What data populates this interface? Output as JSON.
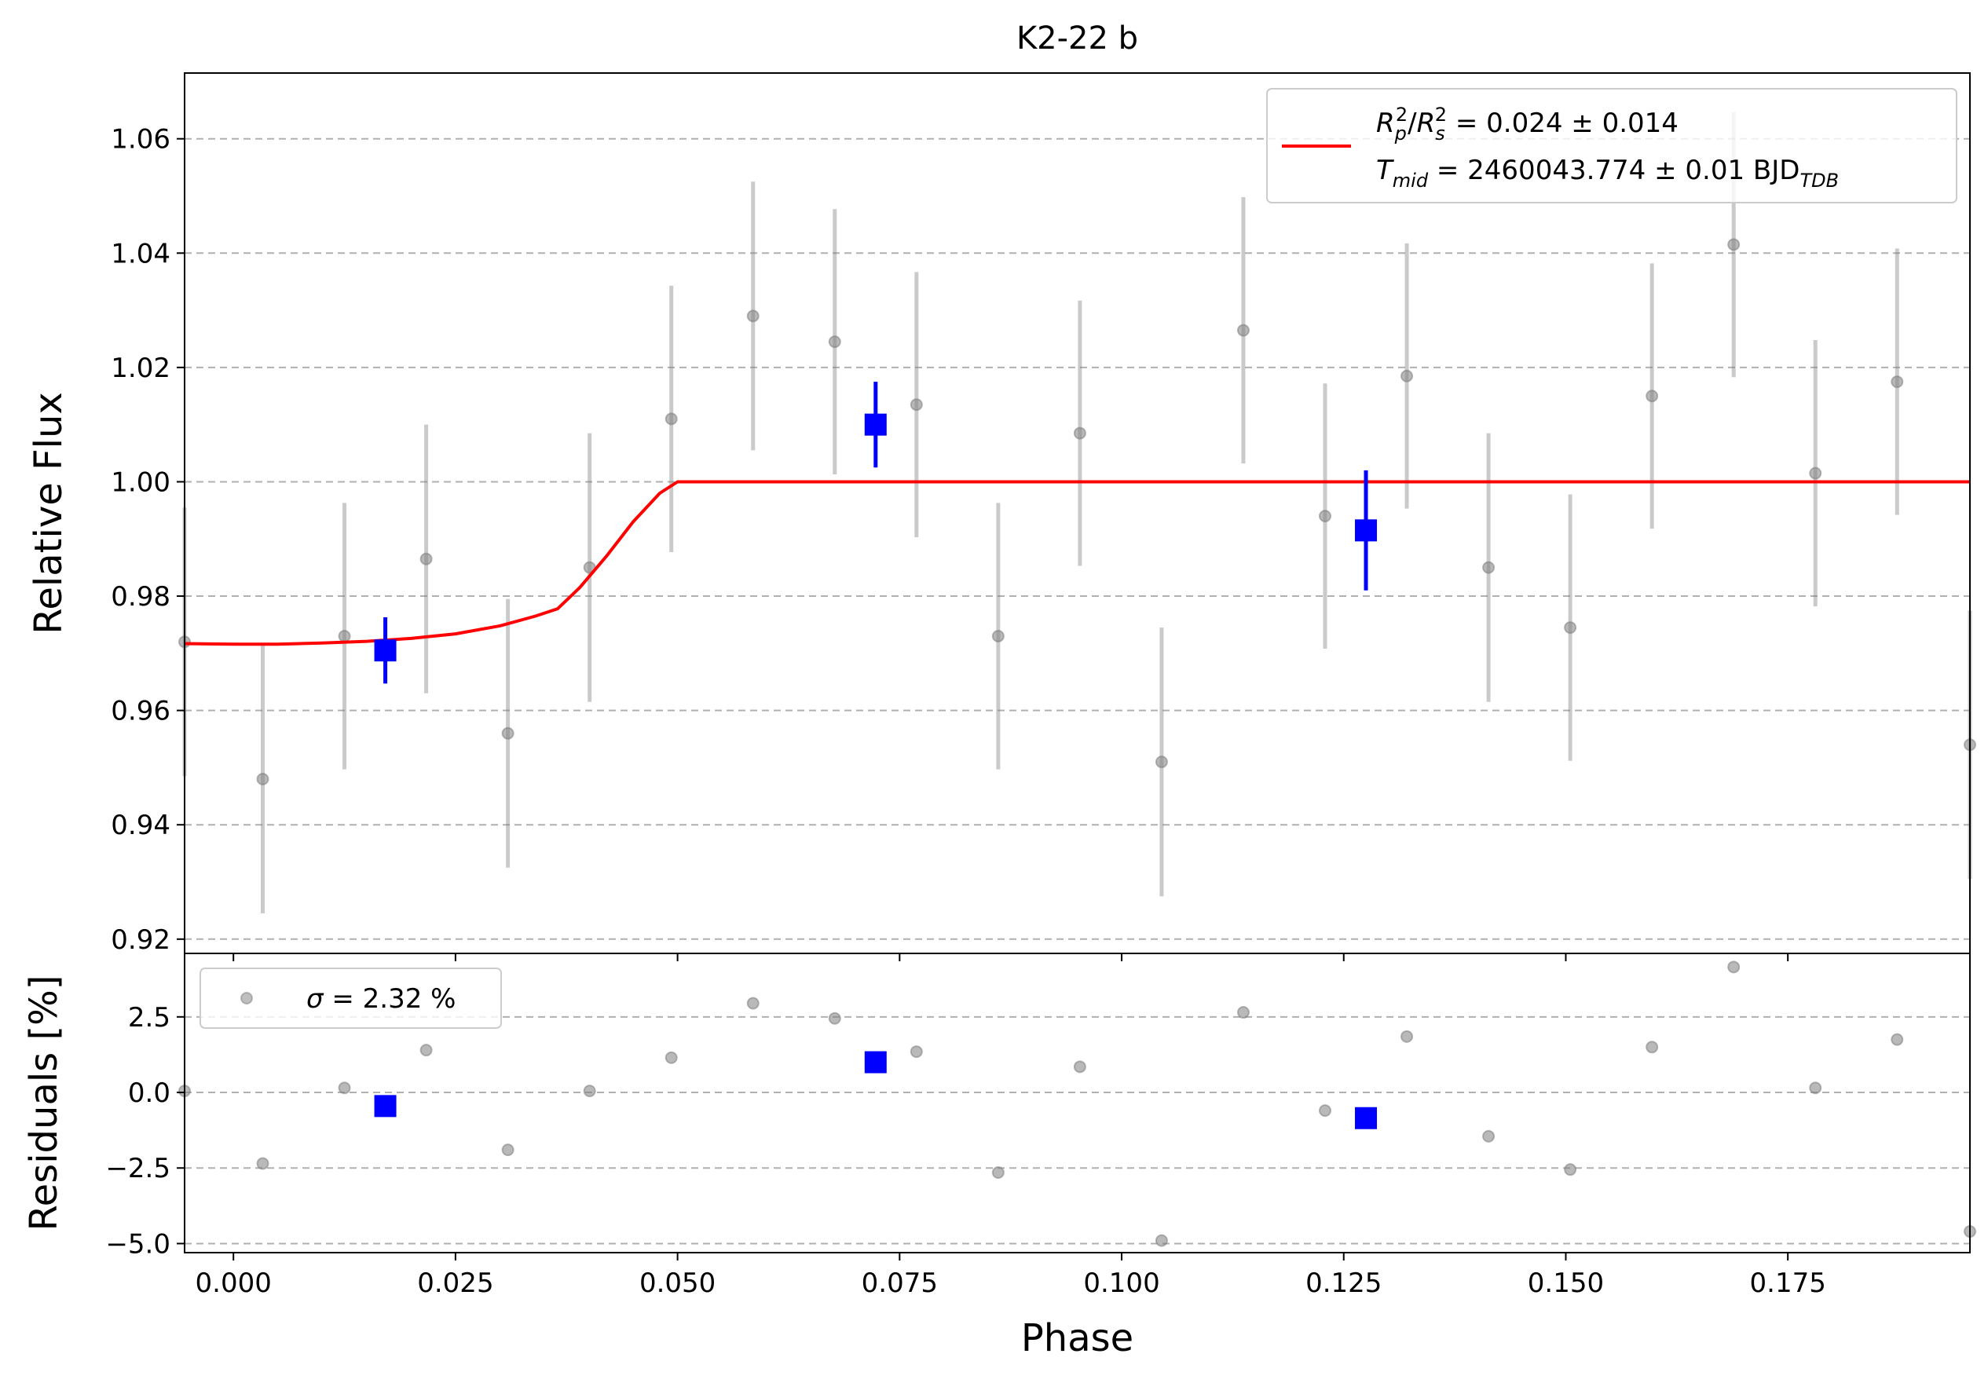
{
  "chart_data": [
    {
      "panel": "main",
      "type": "scatter",
      "title": "K2-22 b",
      "xlabel": "",
      "ylabel": "Relative Flux",
      "xlim": [
        -0.0055,
        0.1955
      ],
      "ylim": [
        0.9175,
        1.0715
      ],
      "yticks": [
        0.92,
        0.94,
        0.96,
        0.98,
        1.0,
        1.02,
        1.04,
        1.06
      ],
      "ytick_labels": [
        "0.92",
        "0.94",
        "0.96",
        "0.98",
        "1.00",
        "1.02",
        "1.04",
        "1.06"
      ],
      "grid": "horizontal dashed",
      "legend": {
        "placement": "top-right",
        "line1_sym": "R",
        "line1_sub1": "p",
        "line1_sup1": "2",
        "line1_slash": "/",
        "line1_sym2": "R",
        "line1_sub2": "s",
        "line1_sup2": "2",
        "line1_rest": " = 0.024 ± 0.014",
        "line2_sym": "T",
        "line2_sub": "mid",
        "line2_rest": " = 2460043.774 ± 0.01 BJD",
        "line2_sub2": "TDB"
      },
      "series": [
        {
          "kind": "raw-points",
          "color": "#808080",
          "x": [
            -0.0055,
            0.0033,
            0.0125,
            0.0217,
            0.0309,
            0.0401,
            0.0493,
            0.0585,
            0.0677,
            0.0769,
            0.0861,
            0.0953,
            0.1045,
            0.1137,
            0.1229,
            0.1321,
            0.1413,
            0.1505,
            0.1597,
            0.1689,
            0.1781,
            0.1873,
            0.1955
          ],
          "y": [
            0.972,
            0.948,
            0.973,
            0.9865,
            0.956,
            0.985,
            1.011,
            1.029,
            1.0245,
            1.0135,
            0.973,
            1.0085,
            0.951,
            1.0265,
            0.994,
            1.0185,
            0.985,
            0.9745,
            1.015,
            1.0415,
            1.0015,
            1.0175,
            0.954
          ],
          "yerr": [
            0.0235,
            0.0235,
            0.0233,
            0.0235,
            0.0235,
            0.0235,
            0.0233,
            0.0235,
            0.0232,
            0.0232,
            0.0233,
            0.0232,
            0.0235,
            0.0233,
            0.0232,
            0.0232,
            0.0235,
            0.0233,
            0.0232,
            0.0232,
            0.0233,
            0.0233,
            0.0235
          ]
        },
        {
          "kind": "binned-points",
          "color": "#0000ff",
          "x": [
            0.0171,
            0.0723,
            0.1275
          ],
          "y": [
            0.9705,
            1.01,
            0.9915
          ],
          "yerr": [
            0.0058,
            0.0075,
            0.0105
          ]
        },
        {
          "kind": "model-line",
          "color": "#ff0000",
          "x": [
            -0.0055,
            0.0,
            0.005,
            0.01,
            0.015,
            0.02,
            0.025,
            0.03,
            0.034,
            0.0365,
            0.039,
            0.042,
            0.045,
            0.048,
            0.05,
            0.052,
            0.06,
            0.1,
            0.15,
            0.1955
          ],
          "y": [
            0.9717,
            0.9716,
            0.9716,
            0.9718,
            0.9721,
            0.9726,
            0.9734,
            0.9748,
            0.9765,
            0.9778,
            0.9815,
            0.987,
            0.993,
            0.998,
            1.0,
            1.0,
            1.0,
            1.0,
            1.0,
            1.0
          ]
        }
      ]
    },
    {
      "panel": "residuals",
      "type": "scatter",
      "title": "",
      "xlabel": "Phase",
      "ylabel": "Residuals [%]",
      "xlim": [
        -0.0055,
        0.1955
      ],
      "ylim": [
        -5.3,
        4.6
      ],
      "xticks": [
        0.0,
        0.025,
        0.05,
        0.075,
        0.1,
        0.125,
        0.15,
        0.175
      ],
      "xtick_labels": [
        "0.000",
        "0.025",
        "0.050",
        "0.075",
        "0.100",
        "0.125",
        "0.150",
        "0.175"
      ],
      "yticks": [
        -5.0,
        -2.5,
        0.0,
        2.5
      ],
      "ytick_labels": [
        "−5.0",
        "−2.5",
        "0.0",
        "2.5"
      ],
      "grid": "horizontal dashed",
      "legend": {
        "placement": "top-left",
        "sym": "σ",
        "rest": " = 2.32 %"
      },
      "series": [
        {
          "kind": "raw-residuals",
          "color": "#808080",
          "x": [
            -0.0055,
            0.0033,
            0.0125,
            0.0217,
            0.0309,
            0.0401,
            0.0493,
            0.0585,
            0.0677,
            0.0769,
            0.0861,
            0.0953,
            0.1045,
            0.1137,
            0.1229,
            0.1321,
            0.1413,
            0.1505,
            0.1597,
            0.1689,
            0.1781,
            0.1873,
            0.1955
          ],
          "y": [
            0.05,
            -2.35,
            0.15,
            1.4,
            -1.9,
            0.05,
            1.15,
            2.95,
            2.45,
            1.35,
            -2.65,
            0.85,
            -4.9,
            2.65,
            -0.6,
            1.85,
            -1.45,
            -2.55,
            1.5,
            4.15,
            0.15,
            1.75,
            -4.6
          ]
        },
        {
          "kind": "binned-residuals",
          "color": "#0000ff",
          "x": [
            0.0171,
            0.0723,
            0.1275
          ],
          "y": [
            -0.45,
            1.0,
            -0.85
          ]
        }
      ]
    }
  ]
}
